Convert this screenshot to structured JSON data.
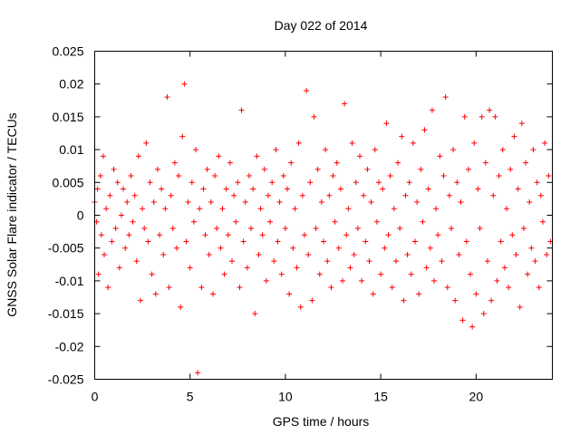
{
  "chart_data": {
    "type": "scatter",
    "title": "Day 022 of 2014",
    "xlabel": "GPS time / hours",
    "ylabel": "GNSS Solar Flare indicator / TECUs",
    "xlim": [
      0,
      24
    ],
    "ylim": [
      -0.025,
      0.025
    ],
    "xticks": [
      "0",
      "5",
      "10",
      "15",
      "20"
    ],
    "xtick_values": [
      0,
      5,
      10,
      15,
      20
    ],
    "yticks": [
      "0.025",
      "0.02",
      "0.015",
      "0.01",
      "0.005",
      "0",
      "-0.005",
      "-0.01",
      "-0.015",
      "-0.02",
      "-0.025"
    ],
    "ytick_values": [
      0.025,
      0.02,
      0.015,
      0.01,
      0.005,
      0,
      -0.005,
      -0.01,
      -0.015,
      -0.02,
      -0.025
    ],
    "grid": false,
    "legend": "none",
    "marker": "plus",
    "series": [
      {
        "color": "#ff0000",
        "points": [
          [
            0.0,
            0.002
          ],
          [
            0.1,
            -0.001
          ],
          [
            0.15,
            0.004
          ],
          [
            0.2,
            -0.009
          ],
          [
            0.3,
            0.006
          ],
          [
            0.35,
            -0.003
          ],
          [
            0.45,
            0.009
          ],
          [
            0.5,
            -0.006
          ],
          [
            0.6,
            0.001
          ],
          [
            0.7,
            -0.011
          ],
          [
            0.8,
            0.003
          ],
          [
            0.9,
            -0.004
          ],
          [
            1.0,
            0.007
          ],
          [
            1.1,
            -0.002
          ],
          [
            1.2,
            0.005
          ],
          [
            1.3,
            -0.008
          ],
          [
            1.4,
            0.0
          ],
          [
            1.5,
            0.004
          ],
          [
            1.6,
            -0.005
          ],
          [
            1.7,
            0.002
          ],
          [
            1.8,
            -0.003
          ],
          [
            1.9,
            0.006
          ],
          [
            2.0,
            -0.001
          ],
          [
            2.1,
            0.003
          ],
          [
            2.2,
            -0.007
          ],
          [
            2.3,
            0.009
          ],
          [
            2.4,
            -0.013
          ],
          [
            2.5,
            0.001
          ],
          [
            2.6,
            -0.002
          ],
          [
            2.7,
            0.011
          ],
          [
            2.8,
            -0.004
          ],
          [
            2.9,
            0.005
          ],
          [
            3.0,
            -0.009
          ],
          [
            3.1,
            0.002
          ],
          [
            3.2,
            -0.012
          ],
          [
            3.3,
            0.007
          ],
          [
            3.4,
            -0.003
          ],
          [
            3.5,
            0.004
          ],
          [
            3.6,
            -0.006
          ],
          [
            3.7,
            0.001
          ],
          [
            3.8,
            0.018
          ],
          [
            3.9,
            -0.011
          ],
          [
            4.0,
            0.003
          ],
          [
            4.1,
            -0.002
          ],
          [
            4.2,
            0.008
          ],
          [
            4.3,
            -0.005
          ],
          [
            4.4,
            0.006
          ],
          [
            4.5,
            -0.014
          ],
          [
            4.6,
            0.012
          ],
          [
            4.7,
            0.02
          ],
          [
            4.8,
            -0.004
          ],
          [
            4.9,
            0.002
          ],
          [
            5.0,
            -0.008
          ],
          [
            5.1,
            0.005
          ],
          [
            5.2,
            -0.001
          ],
          [
            5.3,
            0.01
          ],
          [
            5.4,
            -0.024
          ],
          [
            5.5,
            0.001
          ],
          [
            5.6,
            -0.011
          ],
          [
            5.7,
            0.004
          ],
          [
            5.8,
            -0.003
          ],
          [
            5.9,
            0.007
          ],
          [
            6.0,
            -0.006
          ],
          [
            6.1,
            0.002
          ],
          [
            6.2,
            -0.012
          ],
          [
            6.3,
            0.006
          ],
          [
            6.4,
            -0.002
          ],
          [
            6.5,
            0.009
          ],
          [
            6.6,
            -0.005
          ],
          [
            6.7,
            0.001
          ],
          [
            6.8,
            -0.009
          ],
          [
            6.9,
            0.004
          ],
          [
            7.0,
            -0.003
          ],
          [
            7.1,
            0.008
          ],
          [
            7.2,
            -0.007
          ],
          [
            7.3,
            0.003
          ],
          [
            7.4,
            -0.001
          ],
          [
            7.5,
            0.005
          ],
          [
            7.6,
            -0.011
          ],
          [
            7.7,
            0.016
          ],
          [
            7.8,
            -0.004
          ],
          [
            7.9,
            0.002
          ],
          [
            8.0,
            -0.008
          ],
          [
            8.1,
            0.006
          ],
          [
            8.2,
            -0.002
          ],
          [
            8.3,
            0.004
          ],
          [
            8.4,
            -0.015
          ],
          [
            8.5,
            0.009
          ],
          [
            8.6,
            -0.006
          ],
          [
            8.7,
            0.001
          ],
          [
            8.8,
            -0.003
          ],
          [
            8.9,
            0.007
          ],
          [
            9.0,
            -0.01
          ],
          [
            9.1,
            0.003
          ],
          [
            9.2,
            -0.001
          ],
          [
            9.3,
            0.005
          ],
          [
            9.4,
            -0.007
          ],
          [
            9.5,
            0.01
          ],
          [
            9.6,
            -0.004
          ],
          [
            9.7,
            0.002
          ],
          [
            9.8,
            -0.009
          ],
          [
            9.9,
            0.006
          ],
          [
            10.0,
            -0.002
          ],
          [
            10.1,
            0.004
          ],
          [
            10.2,
            -0.012
          ],
          [
            10.3,
            0.008
          ],
          [
            10.4,
            -0.005
          ],
          [
            10.5,
            0.001
          ],
          [
            10.6,
            -0.008
          ],
          [
            10.7,
            0.011
          ],
          [
            10.8,
            -0.014
          ],
          [
            10.9,
            0.003
          ],
          [
            11.0,
            -0.003
          ],
          [
            11.1,
            0.019
          ],
          [
            11.2,
            -0.006
          ],
          [
            11.3,
            0.005
          ],
          [
            11.4,
            -0.013
          ],
          [
            11.5,
            0.015
          ],
          [
            11.6,
            -0.002
          ],
          [
            11.7,
            0.007
          ],
          [
            11.8,
            -0.009
          ],
          [
            11.9,
            0.002
          ],
          [
            12.0,
            -0.004
          ],
          [
            12.1,
            0.01
          ],
          [
            12.2,
            -0.007
          ],
          [
            12.3,
            0.003
          ],
          [
            12.4,
            -0.011
          ],
          [
            12.5,
            0.006
          ],
          [
            12.6,
            -0.001
          ],
          [
            12.7,
            0.008
          ],
          [
            12.8,
            -0.005
          ],
          [
            12.9,
            0.004
          ],
          [
            13.0,
            -0.01
          ],
          [
            13.1,
            0.017
          ],
          [
            13.2,
            -0.003
          ],
          [
            13.3,
            0.001
          ],
          [
            13.4,
            -0.008
          ],
          [
            13.5,
            0.011
          ],
          [
            13.6,
            -0.006
          ],
          [
            13.7,
            0.005
          ],
          [
            13.8,
            -0.002
          ],
          [
            13.9,
            0.009
          ],
          [
            14.0,
            -0.01
          ],
          [
            14.1,
            0.003
          ],
          [
            14.2,
            -0.004
          ],
          [
            14.3,
            0.007
          ],
          [
            14.4,
            -0.007
          ],
          [
            14.5,
            0.002
          ],
          [
            14.6,
            -0.012
          ],
          [
            14.7,
            0.01
          ],
          [
            14.8,
            -0.001
          ],
          [
            14.9,
            0.005
          ],
          [
            15.0,
            -0.009
          ],
          [
            15.1,
            0.004
          ],
          [
            15.2,
            -0.005
          ],
          [
            15.3,
            0.014
          ],
          [
            15.4,
            -0.003
          ],
          [
            15.5,
            0.006
          ],
          [
            15.6,
            -0.011
          ],
          [
            15.7,
            0.001
          ],
          [
            15.8,
            -0.007
          ],
          [
            15.9,
            0.008
          ],
          [
            16.0,
            -0.002
          ],
          [
            16.1,
            0.012
          ],
          [
            16.2,
            -0.013
          ],
          [
            16.3,
            0.003
          ],
          [
            16.4,
            -0.006
          ],
          [
            16.5,
            0.005
          ],
          [
            16.6,
            -0.009
          ],
          [
            16.7,
            0.011
          ],
          [
            16.8,
            -0.004
          ],
          [
            16.9,
            0.002
          ],
          [
            17.0,
            -0.012
          ],
          [
            17.1,
            0.007
          ],
          [
            17.2,
            -0.001
          ],
          [
            17.3,
            0.013
          ],
          [
            17.4,
            -0.008
          ],
          [
            17.5,
            0.004
          ],
          [
            17.6,
            -0.005
          ],
          [
            17.7,
            0.016
          ],
          [
            17.8,
            -0.01
          ],
          [
            17.9,
            0.001
          ],
          [
            18.0,
            -0.003
          ],
          [
            18.1,
            0.009
          ],
          [
            18.2,
            -0.007
          ],
          [
            18.3,
            0.006
          ],
          [
            18.4,
            0.018
          ],
          [
            18.5,
            -0.011
          ],
          [
            18.6,
            0.003
          ],
          [
            18.7,
            -0.002
          ],
          [
            18.8,
            0.01
          ],
          [
            18.9,
            -0.013
          ],
          [
            19.0,
            0.005
          ],
          [
            19.1,
            -0.006
          ],
          [
            19.2,
            0.002
          ],
          [
            19.3,
            -0.016
          ],
          [
            19.4,
            0.015
          ],
          [
            19.5,
            -0.004
          ],
          [
            19.6,
            0.007
          ],
          [
            19.7,
            -0.009
          ],
          [
            19.8,
            -0.017
          ],
          [
            19.9,
            0.011
          ],
          [
            20.0,
            -0.012
          ],
          [
            20.1,
            0.004
          ],
          [
            20.2,
            -0.002
          ],
          [
            20.3,
            0.015
          ],
          [
            20.4,
            -0.015
          ],
          [
            20.5,
            0.008
          ],
          [
            20.6,
            -0.007
          ],
          [
            20.7,
            0.016
          ],
          [
            20.8,
            -0.013
          ],
          [
            20.9,
            0.003
          ],
          [
            21.0,
            0.015
          ],
          [
            21.1,
            -0.01
          ],
          [
            21.2,
            0.006
          ],
          [
            21.3,
            -0.004
          ],
          [
            21.4,
            0.01
          ],
          [
            21.5,
            -0.008
          ],
          [
            21.6,
            0.001
          ],
          [
            21.7,
            -0.011
          ],
          [
            21.8,
            0.007
          ],
          [
            21.9,
            -0.003
          ],
          [
            22.0,
            0.012
          ],
          [
            22.1,
            -0.006
          ],
          [
            22.2,
            0.004
          ],
          [
            22.3,
            -0.014
          ],
          [
            22.4,
            0.014
          ],
          [
            22.5,
            -0.002
          ],
          [
            22.6,
            0.008
          ],
          [
            22.7,
            -0.009
          ],
          [
            22.8,
            0.002
          ],
          [
            22.9,
            -0.005
          ],
          [
            23.0,
            0.01
          ],
          [
            23.1,
            -0.007
          ],
          [
            23.2,
            0.005
          ],
          [
            23.3,
            -0.011
          ],
          [
            23.4,
            0.003
          ],
          [
            23.5,
            -0.001
          ],
          [
            23.6,
            0.011
          ],
          [
            23.7,
            -0.006
          ],
          [
            23.8,
            0.006
          ],
          [
            23.9,
            -0.004
          ]
        ]
      }
    ]
  }
}
